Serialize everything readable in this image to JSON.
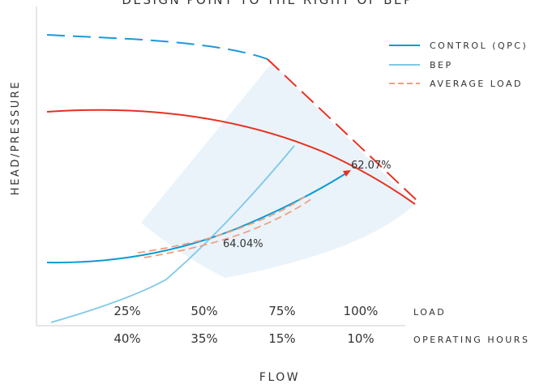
{
  "chart_data": {
    "type": "line",
    "title": "DESIGN POINT TO THE RIGHT OF BEP",
    "xlabel": "FLOW",
    "ylabel": "HEAD/PRESSURE",
    "x_categories": [
      "25%",
      "50%",
      "75%",
      "100%"
    ],
    "x_category_label": "LOAD",
    "x_second_row": [
      "40%",
      "35%",
      "15%",
      "10%"
    ],
    "x_second_row_label": "OPERATING HOURS",
    "legend": [
      "CONTROL (QPC)",
      "BEP",
      "AVERAGE LOAD"
    ],
    "legend_position": "top-right",
    "annotations": [
      "62.07%",
      "64.04%"
    ],
    "colors": {
      "control": "#0a9bd4",
      "bep": "#7fc8e8",
      "average_load": "#f0a080",
      "pump_curve": "#e83020",
      "system_dashed": "#1a9ad8",
      "efficiency_region": "#eaf3fa",
      "axis": "#cccccc",
      "text": "#333333"
    }
  }
}
